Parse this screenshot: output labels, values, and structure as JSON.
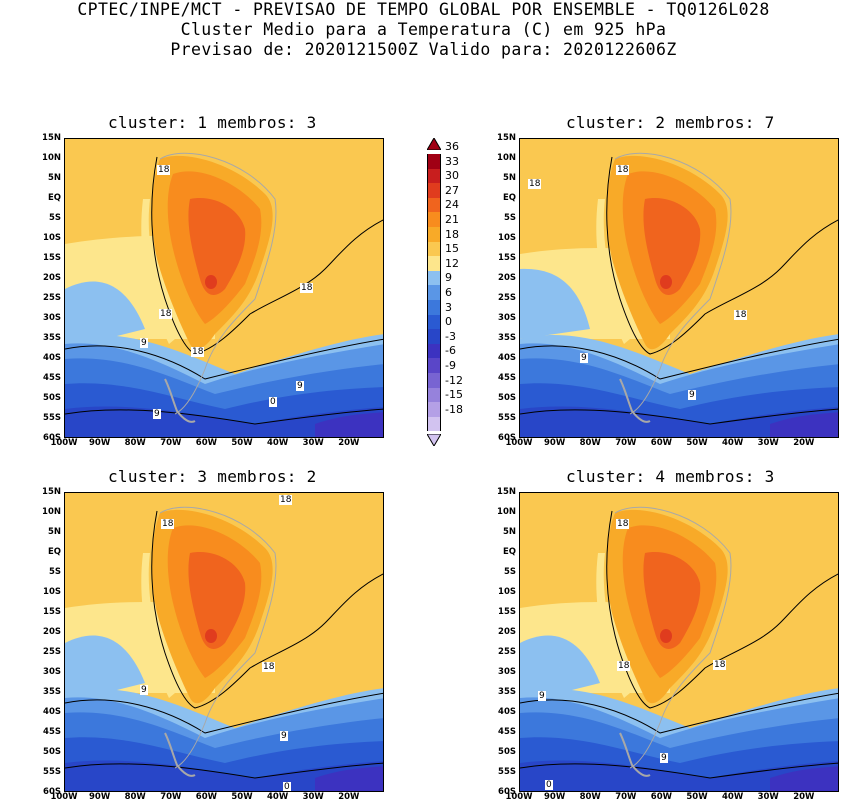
{
  "header": {
    "line1": "CPTEC/INPE/MCT - PREVISAO DE TEMPO GLOBAL POR ENSEMBLE - TQ0126L028",
    "line2": "Cluster Medio para a Temperatura (C) em 925 hPa",
    "line3": "Previsao de: 2020121500Z   Valido para: 2020122606Z"
  },
  "axes": {
    "lat_ticks": [
      "15N",
      "10N",
      "5N",
      "EQ",
      "5S",
      "10S",
      "15S",
      "20S",
      "25S",
      "30S",
      "35S",
      "40S",
      "45S",
      "50S",
      "55S",
      "60S"
    ],
    "lon_ticks": [
      "100W",
      "90W",
      "80W",
      "70W",
      "60W",
      "50W",
      "40W",
      "30W",
      "20W"
    ]
  },
  "colorbar": {
    "labels": [
      "36",
      "33",
      "30",
      "27",
      "24",
      "21",
      "18",
      "15",
      "12",
      "9",
      "6",
      "3",
      "0",
      "-3",
      "-6",
      "-9",
      "-12",
      "-15",
      "-18"
    ],
    "colors": [
      "#a00014",
      "#c81e1e",
      "#e03c1e",
      "#f0641e",
      "#f88c1e",
      "#f8aa28",
      "#fac850",
      "#fde68c",
      "#8cc0f0",
      "#5a96e6",
      "#3c78dc",
      "#2a5ad2",
      "#2846c8",
      "#3c32c0",
      "#5a46c8",
      "#7864d2",
      "#9682dc",
      "#b4a0e6",
      "#d2c3f0"
    ]
  },
  "clusters": [
    {
      "title": "cluster: 1   membros: 3",
      "contour_labels": [
        "18",
        "18",
        "18",
        "18",
        "9",
        "9",
        "9",
        "0"
      ]
    },
    {
      "title": "cluster: 2   membros: 7",
      "contour_labels": [
        "18",
        "18",
        "18",
        "9",
        "9"
      ]
    },
    {
      "title": "cluster: 3   membros: 2",
      "contour_labels": [
        "18",
        "18",
        "18",
        "9",
        "9",
        "0"
      ]
    },
    {
      "title": "cluster: 4   membros: 3",
      "contour_labels": [
        "18",
        "18",
        "18",
        "9",
        "9",
        "0"
      ]
    }
  ]
}
